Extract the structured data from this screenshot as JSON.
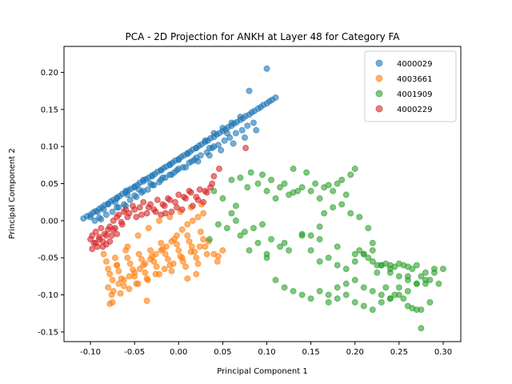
{
  "chart_data": {
    "type": "scatter",
    "title": "PCA - 2D Projection for ANKH at Layer 48 for Category FA",
    "xlabel": "Principal Component 1",
    "ylabel": "Principal Component 2",
    "xlim": [
      -0.13,
      0.32
    ],
    "ylim": [
      -0.163,
      0.235
    ],
    "xticks": [
      "-0.10",
      "-0.05",
      "0.00",
      "0.05",
      "0.10",
      "0.15",
      "0.20",
      "0.25",
      "0.30"
    ],
    "xtick_values": [
      -0.1,
      -0.05,
      0.0,
      0.05,
      0.1,
      0.15,
      0.2,
      0.25,
      0.3
    ],
    "yticks": [
      "-0.15",
      "-0.10",
      "-0.05",
      "0.00",
      "0.05",
      "0.10",
      "0.15",
      "0.20"
    ],
    "ytick_values": [
      -0.15,
      -0.1,
      -0.05,
      0.0,
      0.05,
      0.1,
      0.15,
      0.2
    ],
    "grid": false,
    "legend_position": "top-right",
    "series": [
      {
        "name": "4000029",
        "color": "#1f77b4",
        "x": [
          -0.108,
          -0.104,
          -0.1,
          -0.097,
          -0.094,
          -0.09,
          -0.087,
          -0.084,
          -0.08,
          -0.077,
          -0.074,
          -0.07,
          -0.067,
          -0.064,
          -0.06,
          -0.057,
          -0.054,
          -0.05,
          -0.047,
          -0.044,
          -0.04,
          -0.037,
          -0.034,
          -0.03,
          -0.027,
          -0.024,
          -0.02,
          -0.017,
          -0.014,
          -0.01,
          -0.007,
          -0.004,
          0.0,
          0.003,
          0.006,
          0.01,
          0.013,
          0.016,
          0.02,
          0.023,
          0.026,
          0.03,
          0.033,
          0.036,
          0.04,
          0.043,
          0.046,
          0.05,
          0.053,
          0.056,
          0.06,
          0.063,
          0.066,
          0.07,
          0.073,
          0.076,
          0.08,
          0.083,
          0.086,
          0.09,
          0.093,
          0.096,
          0.1,
          0.103,
          0.106,
          0.11,
          -0.095,
          -0.088,
          -0.082,
          -0.075,
          -0.068,
          -0.062,
          -0.055,
          -0.048,
          -0.042,
          -0.035,
          -0.028,
          -0.022,
          -0.015,
          -0.008,
          -0.002,
          0.005,
          0.012,
          0.018,
          0.025,
          0.032,
          0.038,
          0.045,
          0.052,
          0.058,
          0.065,
          0.072,
          0.078,
          0.085,
          -0.092,
          -0.08,
          -0.07,
          -0.06,
          -0.05,
          -0.04,
          -0.03,
          -0.02,
          -0.01,
          0.0,
          0.01,
          0.02,
          0.03,
          0.04,
          0.05,
          0.06,
          0.07,
          -0.1,
          -0.085,
          -0.072,
          -0.058,
          -0.045,
          -0.032,
          -0.018,
          -0.005,
          0.008,
          0.022,
          0.035,
          0.048,
          0.062,
          0.075,
          0.088,
          -0.06,
          -0.04,
          -0.02,
          0.0,
          0.02,
          0.04,
          -0.09,
          -0.07,
          -0.05,
          -0.03,
          -0.01,
          0.015,
          0.035,
          0.055,
          0.08,
          0.1
        ],
        "y": [
          0.003,
          0.006,
          0.008,
          0.011,
          0.013,
          0.016,
          0.018,
          0.021,
          0.023,
          0.026,
          0.028,
          0.031,
          0.033,
          0.036,
          0.038,
          0.041,
          0.043,
          0.046,
          0.048,
          0.051,
          0.053,
          0.056,
          0.058,
          0.061,
          0.063,
          0.066,
          0.068,
          0.071,
          0.073,
          0.076,
          0.078,
          0.081,
          0.083,
          0.086,
          0.088,
          0.091,
          0.093,
          0.096,
          0.098,
          0.101,
          0.103,
          0.106,
          0.108,
          0.111,
          0.113,
          0.116,
          0.118,
          0.121,
          0.123,
          0.126,
          0.128,
          0.131,
          0.133,
          0.136,
          0.138,
          0.141,
          0.143,
          0.146,
          0.148,
          0.151,
          0.153,
          0.156,
          0.158,
          0.161,
          0.163,
          0.166,
          0.0,
          0.002,
          0.008,
          0.012,
          0.018,
          0.022,
          0.028,
          0.032,
          0.038,
          0.042,
          0.048,
          0.052,
          0.058,
          0.062,
          0.068,
          0.072,
          0.078,
          0.082,
          0.088,
          0.092,
          0.098,
          0.102,
          0.108,
          0.112,
          0.118,
          0.122,
          0.128,
          0.132,
          0.012,
          0.022,
          0.03,
          0.04,
          0.045,
          0.055,
          0.06,
          0.068,
          0.075,
          0.082,
          0.09,
          0.098,
          0.108,
          0.118,
          0.125,
          0.132,
          0.14,
          0.005,
          0.015,
          0.025,
          0.035,
          0.042,
          0.05,
          0.058,
          0.065,
          0.072,
          0.08,
          0.088,
          0.095,
          0.104,
          0.112,
          0.122,
          0.02,
          0.04,
          0.055,
          0.07,
          0.085,
          0.1,
          0.004,
          0.018,
          0.034,
          0.048,
          0.062,
          0.08,
          0.098,
          0.118,
          0.175,
          0.205
        ]
      },
      {
        "name": "4003661",
        "color": "#ff7f0e",
        "x": [
          -0.085,
          -0.082,
          -0.08,
          -0.078,
          -0.075,
          -0.072,
          -0.07,
          -0.068,
          -0.065,
          -0.062,
          -0.06,
          -0.058,
          -0.055,
          -0.052,
          -0.05,
          -0.048,
          -0.045,
          -0.042,
          -0.04,
          -0.038,
          -0.035,
          -0.032,
          -0.03,
          -0.028,
          -0.025,
          -0.022,
          -0.02,
          -0.018,
          -0.015,
          -0.012,
          -0.01,
          -0.008,
          -0.005,
          -0.002,
          0.0,
          0.002,
          0.005,
          0.008,
          0.01,
          0.012,
          0.015,
          0.018,
          0.02,
          0.022,
          0.025,
          0.028,
          0.03,
          0.032,
          -0.08,
          -0.074,
          -0.068,
          -0.062,
          -0.056,
          -0.05,
          -0.044,
          -0.038,
          -0.032,
          -0.026,
          -0.02,
          -0.014,
          -0.008,
          -0.002,
          0.004,
          0.01,
          0.016,
          0.022,
          0.028,
          -0.076,
          -0.066,
          -0.056,
          -0.046,
          -0.036,
          -0.026,
          -0.016,
          -0.006,
          0.004,
          0.014,
          0.024,
          0.034,
          0.04,
          0.044,
          -0.07,
          -0.058,
          -0.046,
          -0.034,
          -0.022,
          -0.01,
          0.002,
          0.014,
          0.026,
          0.045,
          0.05,
          0.02,
          0.01,
          -0.036,
          -0.075,
          -0.078
        ],
        "y": [
          -0.045,
          -0.055,
          -0.065,
          -0.072,
          -0.08,
          -0.05,
          -0.06,
          -0.068,
          -0.078,
          -0.088,
          -0.04,
          -0.05,
          -0.058,
          -0.066,
          -0.075,
          -0.085,
          -0.045,
          -0.052,
          -0.06,
          -0.07,
          -0.08,
          -0.04,
          -0.048,
          -0.055,
          -0.062,
          -0.072,
          -0.03,
          -0.038,
          -0.045,
          -0.052,
          -0.06,
          -0.068,
          -0.025,
          -0.032,
          -0.04,
          -0.048,
          -0.055,
          -0.062,
          -0.02,
          -0.028,
          -0.035,
          -0.042,
          -0.05,
          -0.058,
          -0.015,
          -0.025,
          -0.035,
          -0.045,
          -0.09,
          -0.095,
          -0.085,
          -0.08,
          -0.075,
          -0.07,
          -0.065,
          -0.058,
          -0.052,
          -0.045,
          -0.04,
          -0.035,
          -0.028,
          -0.02,
          -0.012,
          -0.005,
          0.0,
          0.005,
          0.01,
          -0.1,
          -0.098,
          -0.092,
          -0.085,
          -0.078,
          -0.072,
          -0.065,
          -0.058,
          -0.05,
          -0.042,
          -0.035,
          -0.028,
          -0.045,
          -0.055,
          -0.06,
          -0.035,
          -0.02,
          -0.01,
          0.0,
          0.005,
          0.012,
          0.018,
          0.022,
          -0.048,
          -0.04,
          -0.072,
          -0.078,
          -0.108,
          -0.11,
          -0.112
        ]
      },
      {
        "name": "4001909",
        "color": "#2ca02c",
        "x": [
          0.04,
          0.05,
          0.06,
          0.065,
          0.07,
          0.078,
          0.082,
          0.09,
          0.095,
          0.1,
          0.105,
          0.11,
          0.115,
          0.12,
          0.125,
          0.13,
          0.135,
          0.14,
          0.145,
          0.15,
          0.155,
          0.16,
          0.165,
          0.17,
          0.175,
          0.18,
          0.185,
          0.19,
          0.195,
          0.2,
          0.205,
          0.21,
          0.215,
          0.22,
          0.225,
          0.23,
          0.235,
          0.24,
          0.245,
          0.25,
          0.255,
          0.26,
          0.265,
          0.27,
          0.275,
          0.28,
          0.285,
          0.29,
          0.295,
          0.3,
          0.06,
          0.07,
          0.08,
          0.09,
          0.1,
          0.11,
          0.12,
          0.13,
          0.14,
          0.15,
          0.16,
          0.17,
          0.18,
          0.19,
          0.2,
          0.21,
          0.22,
          0.23,
          0.24,
          0.25,
          0.26,
          0.27,
          0.28,
          0.29,
          0.15,
          0.16,
          0.17,
          0.18,
          0.19,
          0.2,
          0.21,
          0.22,
          0.23,
          0.24,
          0.25,
          0.26,
          0.27,
          0.28,
          0.1,
          0.12,
          0.14,
          0.16,
          0.18,
          0.2,
          0.22,
          0.24,
          0.26,
          0.035,
          0.045,
          0.055,
          0.065,
          0.075,
          0.085,
          0.095,
          0.105,
          0.115,
          0.125,
          0.17,
          0.18,
          0.19,
          0.2,
          0.21,
          0.22,
          0.23,
          0.24,
          0.25,
          0.26,
          0.27,
          0.275,
          0.14,
          0.13,
          0.15,
          0.16,
          0.165,
          0.175,
          0.185,
          0.195,
          0.205,
          0.215,
          0.225,
          0.235,
          0.245,
          0.255,
          0.265,
          0.275,
          0.285
        ],
        "y": [
          0.04,
          0.03,
          0.055,
          0.02,
          0.058,
          0.045,
          0.065,
          0.05,
          0.062,
          0.04,
          0.055,
          0.03,
          0.045,
          0.05,
          0.035,
          0.07,
          0.04,
          0.045,
          0.065,
          0.04,
          0.05,
          0.03,
          0.045,
          0.048,
          0.04,
          0.05,
          0.055,
          0.035,
          0.062,
          0.07,
          -0.04,
          -0.045,
          -0.05,
          -0.03,
          -0.06,
          -0.06,
          -0.058,
          -0.06,
          -0.062,
          -0.058,
          -0.06,
          -0.062,
          -0.065,
          -0.06,
          -0.075,
          -0.07,
          -0.08,
          -0.065,
          -0.085,
          -0.065,
          0.01,
          -0.02,
          -0.04,
          -0.03,
          -0.05,
          -0.08,
          -0.09,
          -0.095,
          -0.1,
          -0.105,
          -0.095,
          -0.1,
          -0.09,
          -0.085,
          -0.08,
          -0.09,
          -0.095,
          -0.1,
          -0.105,
          -0.09,
          -0.095,
          -0.085,
          -0.08,
          -0.07,
          -0.04,
          -0.055,
          -0.05,
          -0.06,
          -0.065,
          -0.055,
          -0.045,
          -0.04,
          -0.06,
          -0.07,
          -0.075,
          -0.08,
          -0.085,
          -0.085,
          -0.045,
          -0.03,
          -0.02,
          -0.025,
          -0.035,
          -0.045,
          -0.055,
          -0.065,
          -0.075,
          -0.025,
          -0.005,
          -0.01,
          0.0,
          -0.015,
          -0.01,
          -0.005,
          -0.025,
          -0.035,
          -0.04,
          -0.11,
          -0.105,
          -0.1,
          -0.11,
          -0.115,
          -0.12,
          -0.11,
          -0.105,
          -0.1,
          -0.115,
          -0.12,
          -0.145,
          -0.018,
          0.038,
          -0.02,
          -0.008,
          0.01,
          0.018,
          0.022,
          0.01,
          0.005,
          -0.01,
          -0.07,
          -0.09,
          -0.1,
          -0.105,
          -0.118,
          -0.12,
          -0.11
        ]
      },
      {
        "name": "4000229",
        "color": "#d62728",
        "x": [
          -0.1,
          -0.098,
          -0.096,
          -0.094,
          -0.092,
          -0.09,
          -0.088,
          -0.086,
          -0.084,
          -0.082,
          -0.08,
          -0.078,
          -0.076,
          -0.074,
          -0.072,
          -0.07,
          -0.068,
          -0.065,
          -0.062,
          -0.06,
          -0.056,
          -0.052,
          -0.048,
          -0.044,
          -0.04,
          -0.036,
          -0.032,
          -0.028,
          -0.024,
          -0.02,
          -0.016,
          -0.012,
          -0.008,
          -0.004,
          0.0,
          0.004,
          0.008,
          0.012,
          0.016,
          0.02,
          0.024,
          0.028,
          0.032,
          0.036,
          0.04,
          0.046,
          -0.098,
          -0.094,
          -0.09,
          -0.086,
          -0.082,
          -0.078,
          -0.074,
          -0.07,
          -0.064,
          -0.058,
          -0.05,
          -0.042,
          -0.034,
          -0.026,
          -0.018,
          -0.01,
          -0.002,
          0.006,
          0.014,
          0.022,
          0.03,
          0.038,
          0.076,
          -0.015
        ],
        "y": [
          -0.025,
          -0.02,
          -0.03,
          -0.015,
          -0.035,
          -0.022,
          -0.01,
          -0.028,
          -0.018,
          -0.032,
          -0.012,
          -0.008,
          -0.02,
          0.0,
          -0.01,
          0.005,
          0.008,
          -0.002,
          0.012,
          0.015,
          0.01,
          0.02,
          0.005,
          0.018,
          0.025,
          0.01,
          0.022,
          0.015,
          0.028,
          0.008,
          0.02,
          0.03,
          0.012,
          0.025,
          0.035,
          0.015,
          0.03,
          0.04,
          0.02,
          0.032,
          0.042,
          0.025,
          0.038,
          0.045,
          0.06,
          0.07,
          -0.038,
          -0.03,
          -0.025,
          -0.035,
          -0.02,
          -0.028,
          -0.012,
          -0.018,
          -0.005,
          0.005,
          0.015,
          0.008,
          0.018,
          0.012,
          0.022,
          0.028,
          0.018,
          0.032,
          0.038,
          0.028,
          0.04,
          0.05,
          0.098,
          0.01
        ]
      }
    ]
  }
}
